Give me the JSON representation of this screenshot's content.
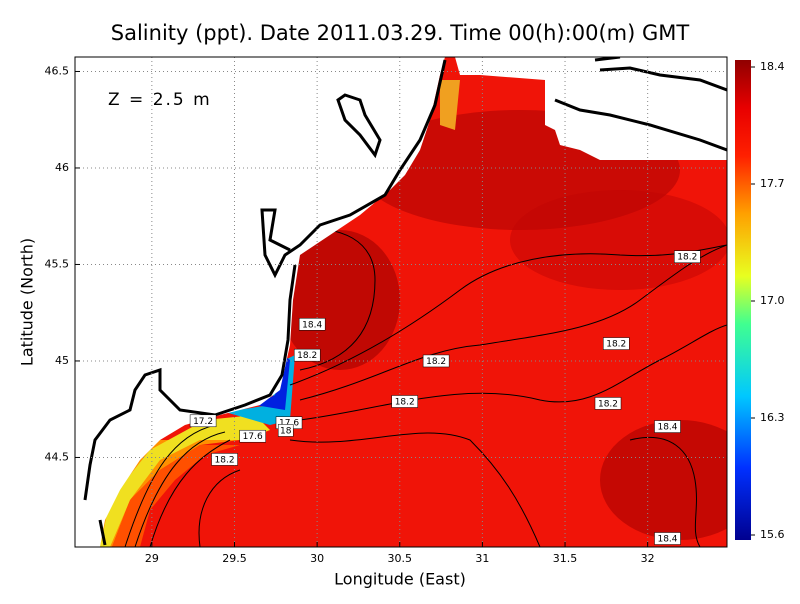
{
  "chart_data": {
    "type": "contour-map",
    "title": "Salinity (ppt). Date 2011.03.29. Time 00(h):00(m) GMT",
    "x_label": "Longitude (East)",
    "y_label": "Latitude (North)",
    "annotation": "Z = 2.5 m",
    "xlim": [
      28.535,
      32.48
    ],
    "ylim": [
      44.036,
      46.575
    ],
    "xticks": [
      29,
      29.5,
      30,
      30.5,
      31,
      31.5,
      32
    ],
    "yticks": [
      44.5,
      45,
      45.5,
      46,
      46.5
    ],
    "grid": true,
    "clim": [
      15.6,
      18.4
    ],
    "cticks": [
      15.6,
      16.3,
      {
        "value": 17,
        "label": "17.0"
      },
      17.7,
      18.4
    ],
    "contour_labels": {
      "x": [
        29.97,
        29.94,
        30.72,
        30.53,
        32.24,
        31.81,
        31.76,
        32.12,
        32.12,
        29.31,
        29.61,
        29.83,
        29.81,
        29.44
      ],
      "y": [
        45.19,
        45.03,
        45.0,
        44.79,
        45.54,
        45.09,
        44.78,
        44.66,
        44.08,
        44.69,
        44.61,
        44.68,
        44.64,
        44.49
      ],
      "values": [
        18.4,
        18.2,
        18.2,
        18.2,
        18.2,
        18.2,
        18.2,
        18.4,
        18.4,
        17.2,
        17.6,
        17.6,
        18,
        18.2
      ]
    }
  }
}
